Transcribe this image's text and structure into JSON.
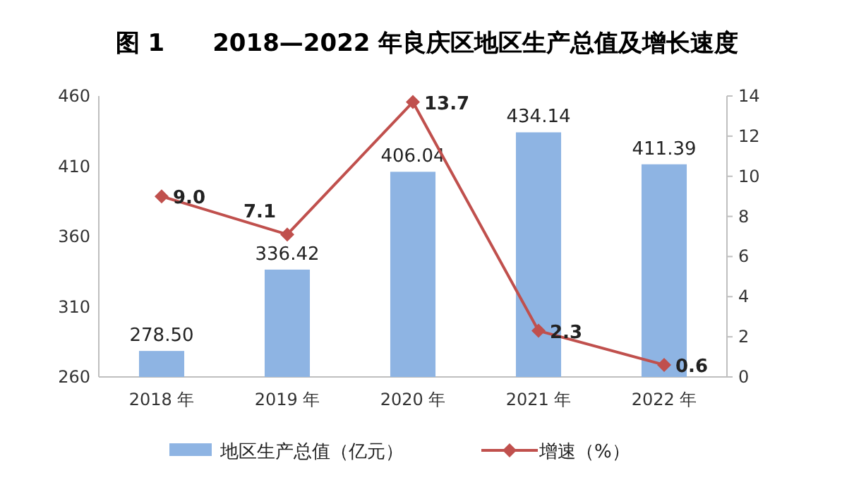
{
  "chart_data": {
    "type": "bar",
    "title": "图 1　　2018—2022 年良庆区地区生产总值及增长速度",
    "categories": [
      "2018 年",
      "2019 年",
      "2020 年",
      "2021 年",
      "2022 年"
    ],
    "series": [
      {
        "name": "地区生产总值（亿元）",
        "color": "#8eb4e3",
        "values": [
          278.5,
          336.42,
          406.04,
          434.14,
          411.39
        ],
        "value_labels": [
          "278.50",
          "336.42",
          "406.04",
          "434.14",
          "411.39"
        ]
      },
      {
        "name": "增速（%）",
        "type": "line",
        "axis": "y2",
        "color": "#c0504d",
        "marker": "diamond",
        "values": [
          9.0,
          7.1,
          13.7,
          2.3,
          0.6
        ],
        "value_labels": [
          "9.0",
          "7.1",
          "13.7",
          "2.3",
          "0.6"
        ]
      }
    ],
    "ylim": [
      260,
      460
    ],
    "yticks": [
      260,
      310,
      360,
      410,
      460
    ],
    "y2lim": [
      0,
      14
    ],
    "y2ticks": [
      0,
      2,
      4,
      6,
      8,
      10,
      12,
      14
    ],
    "legend": "bottom"
  }
}
